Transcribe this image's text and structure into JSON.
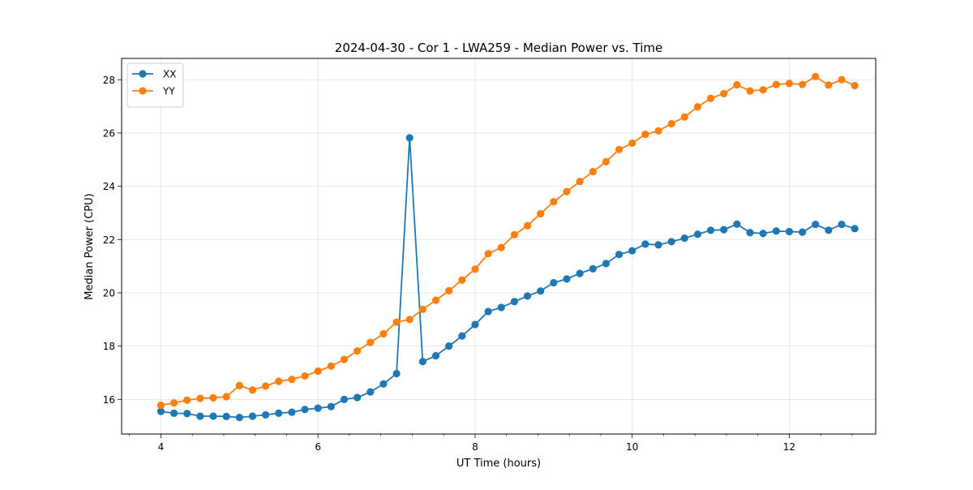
{
  "chart_data": {
    "type": "line",
    "title": "2024-04-30 - Cor 1 - LWA259 - Median Power vs. Time",
    "xlabel": "UT Time (hours)",
    "ylabel": "Median Power (CPU)",
    "xlim": [
      3.5,
      13.1
    ],
    "ylim": [
      14.7,
      28.8
    ],
    "xticks": [
      4,
      6,
      8,
      10,
      12
    ],
    "xtick_labels": [
      "4",
      "6",
      "8",
      "10",
      "12"
    ],
    "x_minor_step": 0.4,
    "yticks": [
      16,
      18,
      20,
      22,
      24,
      26,
      28
    ],
    "ytick_labels": [
      "16",
      "18",
      "20",
      "22",
      "24",
      "26",
      "28"
    ],
    "grid": true,
    "legend_position": "top-left",
    "x": [
      4.0,
      4.1667,
      4.3333,
      4.5,
      4.6667,
      4.8333,
      5.0,
      5.1667,
      5.3333,
      5.5,
      5.6667,
      5.8333,
      6.0,
      6.1667,
      6.3333,
      6.5,
      6.6667,
      6.8333,
      7.0,
      7.1667,
      7.3333,
      7.5,
      7.6667,
      7.8333,
      8.0,
      8.1667,
      8.3333,
      8.5,
      8.6667,
      8.8333,
      9.0,
      9.1667,
      9.3333,
      9.5,
      9.6667,
      9.8333,
      10.0,
      10.1667,
      10.3333,
      10.5,
      10.6667,
      10.8333,
      11.0,
      11.1667,
      11.3333,
      11.5,
      11.6667,
      11.8333,
      12.0,
      12.1667,
      12.3333,
      12.5,
      12.6667,
      12.8333
    ],
    "series": [
      {
        "name": "XX",
        "color": "#1f77b4",
        "values": [
          15.55,
          15.48,
          15.47,
          15.37,
          15.37,
          15.36,
          15.32,
          15.37,
          15.42,
          15.48,
          15.52,
          15.62,
          15.67,
          15.73,
          16.0,
          16.07,
          16.28,
          16.58,
          16.97,
          25.82,
          17.42,
          17.64,
          18.0,
          18.38,
          18.81,
          19.3,
          19.45,
          19.67,
          19.88,
          20.07,
          20.38,
          20.52,
          20.73,
          20.9,
          21.1,
          21.44,
          21.58,
          21.83,
          21.8,
          21.92,
          22.05,
          22.2,
          22.35,
          22.37,
          22.58,
          22.26,
          22.23,
          22.32,
          22.3,
          22.28,
          22.57,
          22.35,
          22.57,
          22.41
        ]
      },
      {
        "name": "YY",
        "color": "#ff7f0e",
        "values": [
          15.78,
          15.87,
          15.97,
          16.04,
          16.06,
          16.1,
          16.52,
          16.35,
          16.5,
          16.68,
          16.75,
          16.88,
          17.06,
          17.25,
          17.5,
          17.82,
          18.14,
          18.46,
          18.9,
          19.0,
          19.38,
          19.72,
          20.08,
          20.48,
          20.89,
          21.47,
          21.7,
          22.18,
          22.52,
          22.97,
          23.42,
          23.8,
          24.18,
          24.55,
          24.92,
          25.38,
          25.62,
          25.95,
          26.08,
          26.35,
          26.6,
          26.98,
          27.3,
          27.48,
          27.81,
          27.58,
          27.62,
          27.82,
          27.86,
          27.82,
          28.12,
          27.8,
          28.0,
          27.78
        ]
      }
    ]
  }
}
